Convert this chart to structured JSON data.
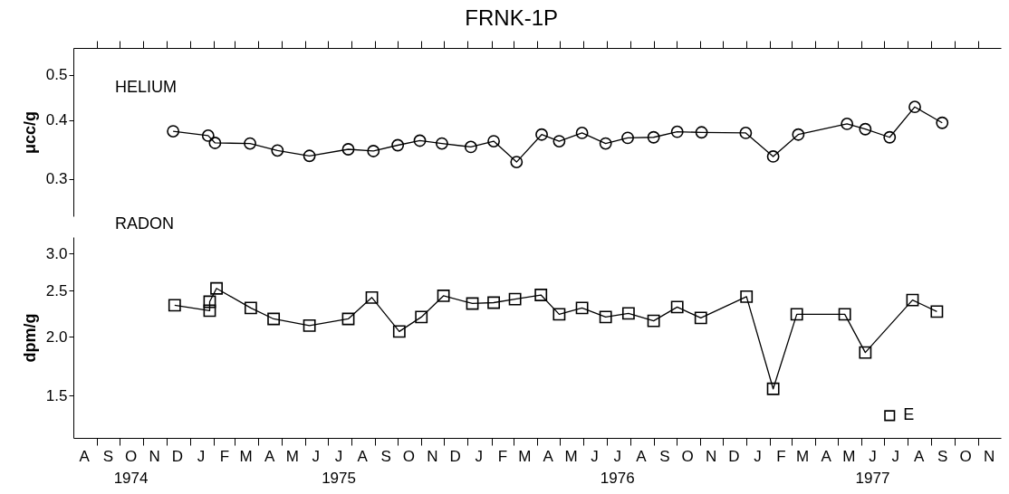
{
  "chart_data": [
    {
      "type": "line",
      "title": "FRNK-1P",
      "ylabel": "μcc/g",
      "log": true,
      "marker": "circle",
      "line_style": "solid",
      "tick_labels": "y",
      "xlim": [
        "1974-08-01",
        "1977-12-01"
      ],
      "ylim": [
        0.25,
        0.57
      ],
      "yticks": [
        0.3,
        0.4,
        0.5
      ],
      "xticks": [
        {
          "value": "1974-09-01",
          "label": null
        },
        {
          "value": "1974-10-01",
          "label": null
        },
        {
          "value": "1974-11-01",
          "label": null
        },
        {
          "value": "1974-12-01",
          "label": null
        },
        {
          "value": "1975-01-01",
          "label": null
        },
        {
          "value": "1975-02-01",
          "label": null
        },
        {
          "value": "1975-03-01",
          "label": null
        },
        {
          "value": "1975-04-01",
          "label": null
        },
        {
          "value": "1975-05-01",
          "label": null
        },
        {
          "value": "1975-06-01",
          "label": null
        },
        {
          "value": "1975-07-01",
          "label": null
        },
        {
          "value": "1975-08-01",
          "label": null
        },
        {
          "value": "1975-09-01",
          "label": null
        },
        {
          "value": "1975-10-01",
          "label": null
        },
        {
          "value": "1975-11-01",
          "label": null
        },
        {
          "value": "1975-12-01",
          "label": null
        },
        {
          "value": "1976-01-01",
          "label": null
        },
        {
          "value": "1976-02-01",
          "label": null
        },
        {
          "value": "1976-03-01",
          "label": null
        },
        {
          "value": "1976-04-01",
          "label": null
        },
        {
          "value": "1976-05-01",
          "label": null
        },
        {
          "value": "1976-06-01",
          "label": null
        },
        {
          "value": "1976-07-01",
          "label": null
        },
        {
          "value": "1976-08-01",
          "label": null
        },
        {
          "value": "1976-09-01",
          "label": null
        },
        {
          "value": "1976-10-01",
          "label": null
        },
        {
          "value": "1976-11-01",
          "label": null
        },
        {
          "value": "1976-12-01",
          "label": null
        },
        {
          "value": "1977-01-01",
          "label": null
        },
        {
          "value": "1977-02-01",
          "label": null
        },
        {
          "value": "1977-03-01",
          "label": null
        },
        {
          "value": "1977-04-01",
          "label": null
        },
        {
          "value": "1977-05-01",
          "label": null
        },
        {
          "value": "1977-06-01",
          "label": null
        },
        {
          "value": "1977-07-01",
          "label": null
        },
        {
          "value": "1977-08-01",
          "label": null
        },
        {
          "value": "1977-09-01",
          "label": null
        },
        {
          "value": "1977-10-01",
          "label": null
        },
        {
          "value": "1977-11-01",
          "label": null
        }
      ],
      "series": [
        {
          "name": "HELIUM",
          "color": "#000000",
          "x": [
            "1974-12-10",
            "1975-01-25",
            "1975-02-03",
            "1975-03-21",
            "1975-04-26",
            "1975-06-07",
            "1975-07-28",
            "1975-08-30",
            "1975-10-01",
            "1975-10-30",
            "1975-11-28",
            "1976-01-05",
            "1976-02-04",
            "1976-03-05",
            "1976-04-07",
            "1976-04-30",
            "1976-05-30",
            "1976-06-30",
            "1976-07-29",
            "1976-09-01",
            "1976-10-02",
            "1976-11-03",
            "1976-12-31",
            "1977-02-05",
            "1977-03-10",
            "1977-05-13",
            "1977-06-06",
            "1977-07-08",
            "1977-08-10",
            "1977-09-15"
          ],
          "values": [
            0.379,
            0.371,
            0.358,
            0.357,
            0.345,
            0.336,
            0.347,
            0.344,
            0.354,
            0.362,
            0.357,
            0.351,
            0.361,
            0.326,
            0.373,
            0.361,
            0.376,
            0.357,
            0.367,
            0.368,
            0.378,
            0.377,
            0.376,
            0.335,
            0.373,
            0.393,
            0.383,
            0.368,
            0.427,
            0.395
          ]
        }
      ]
    },
    {
      "type": "line",
      "ylabel": "dpm/g",
      "log": true,
      "marker": "square",
      "line_style": "solid",
      "xlim": [
        "1974-08-01",
        "1977-12-01"
      ],
      "ylim": [
        1.22,
        3.25
      ],
      "yticks": [
        1.5,
        {
          "value": 2,
          "label": "2.0"
        },
        2.5,
        {
          "value": 3,
          "label": "3.0"
        }
      ],
      "xticks": [
        {
          "value": "1974-08-15",
          "label": "A"
        },
        {
          "value": "1974-09-01",
          "label": null
        },
        {
          "value": "1974-09-15",
          "label": "S"
        },
        {
          "value": "1974-10-01",
          "label": null
        },
        {
          "value": "1974-10-15",
          "label": "O\n1974"
        },
        {
          "value": "1974-11-01",
          "label": null
        },
        {
          "value": "1974-11-15",
          "label": "N"
        },
        {
          "value": "1974-12-01",
          "label": null
        },
        {
          "value": "1974-12-15",
          "label": "D"
        },
        {
          "value": "1975-01-01",
          "label": null
        },
        {
          "value": "1975-01-15",
          "label": "J"
        },
        {
          "value": "1975-02-01",
          "label": null
        },
        {
          "value": "1975-02-15",
          "label": "F"
        },
        {
          "value": "1975-03-01",
          "label": null
        },
        {
          "value": "1975-03-15",
          "label": "M"
        },
        {
          "value": "1975-04-01",
          "label": null
        },
        {
          "value": "1975-04-15",
          "label": "A"
        },
        {
          "value": "1975-05-01",
          "label": null
        },
        {
          "value": "1975-05-15",
          "label": "M"
        },
        {
          "value": "1975-06-01",
          "label": null
        },
        {
          "value": "1975-06-15",
          "label": "J"
        },
        {
          "value": "1975-07-01",
          "label": null
        },
        {
          "value": "1975-07-15",
          "label": "J\n1975"
        },
        {
          "value": "1975-08-01",
          "label": null
        },
        {
          "value": "1975-08-15",
          "label": "A"
        },
        {
          "value": "1975-09-01",
          "label": null
        },
        {
          "value": "1975-09-15",
          "label": "S"
        },
        {
          "value": "1975-10-01",
          "label": null
        },
        {
          "value": "1975-10-15",
          "label": "O"
        },
        {
          "value": "1975-11-01",
          "label": null
        },
        {
          "value": "1975-11-15",
          "label": "N"
        },
        {
          "value": "1975-12-01",
          "label": null
        },
        {
          "value": "1975-12-15",
          "label": "D"
        },
        {
          "value": "1976-01-01",
          "label": null
        },
        {
          "value": "1976-01-15",
          "label": "J"
        },
        {
          "value": "1976-02-01",
          "label": null
        },
        {
          "value": "1976-02-15",
          "label": "F"
        },
        {
          "value": "1976-03-01",
          "label": null
        },
        {
          "value": "1976-03-15",
          "label": "M"
        },
        {
          "value": "1976-04-01",
          "label": null
        },
        {
          "value": "1976-04-15",
          "label": "A"
        },
        {
          "value": "1976-05-01",
          "label": null
        },
        {
          "value": "1976-05-15",
          "label": "M"
        },
        {
          "value": "1976-06-01",
          "label": null
        },
        {
          "value": "1976-06-15",
          "label": "J"
        },
        {
          "value": "1976-07-01",
          "label": null
        },
        {
          "value": "1976-07-15",
          "label": "J\n1976"
        },
        {
          "value": "1976-08-01",
          "label": null
        },
        {
          "value": "1976-08-15",
          "label": "A"
        },
        {
          "value": "1976-09-01",
          "label": null
        },
        {
          "value": "1976-09-15",
          "label": "S"
        },
        {
          "value": "1976-10-01",
          "label": null
        },
        {
          "value": "1976-10-15",
          "label": "O"
        },
        {
          "value": "1976-11-01",
          "label": null
        },
        {
          "value": "1976-11-15",
          "label": "N"
        },
        {
          "value": "1976-12-01",
          "label": null
        },
        {
          "value": "1976-12-15",
          "label": "D"
        },
        {
          "value": "1977-01-01",
          "label": null
        },
        {
          "value": "1977-01-15",
          "label": "J"
        },
        {
          "value": "1977-02-01",
          "label": null
        },
        {
          "value": "1977-02-15",
          "label": "F"
        },
        {
          "value": "1977-03-01",
          "label": null
        },
        {
          "value": "1977-03-15",
          "label": "M"
        },
        {
          "value": "1977-04-01",
          "label": null
        },
        {
          "value": "1977-04-15",
          "label": "A"
        },
        {
          "value": "1977-05-01",
          "label": null
        },
        {
          "value": "1977-05-15",
          "label": "M"
        },
        {
          "value": "1977-06-01",
          "label": null
        },
        {
          "value": "1977-06-15",
          "label": "J\n1977"
        },
        {
          "value": "1977-07-01",
          "label": null
        },
        {
          "value": "1977-07-15",
          "label": "J"
        },
        {
          "value": "1977-08-01",
          "label": null
        },
        {
          "value": "1977-08-15",
          "label": "A"
        },
        {
          "value": "1977-09-01",
          "label": null
        },
        {
          "value": "1977-09-15",
          "label": "S"
        },
        {
          "value": "1977-10-01",
          "label": null
        },
        {
          "value": "1977-10-15",
          "label": "O"
        },
        {
          "value": "1977-11-01",
          "label": null
        },
        {
          "value": "1977-11-15",
          "label": "N"
        }
      ],
      "annotations": [
        {
          "text": "E",
          "x": "1977-07-08",
          "y": 1.36
        }
      ],
      "series": [
        {
          "name": "RADON",
          "color": "#000000",
          "x": [
            "1974-12-12",
            "1975-01-27",
            "1975-01-27",
            "1975-02-05",
            "1975-03-22",
            "1975-04-21",
            "1975-06-07",
            "1975-07-28",
            "1975-08-28",
            "1975-10-03",
            "1975-11-01",
            "1975-11-30",
            "1976-01-07",
            "1976-02-04",
            "1976-03-03",
            "1976-04-06",
            "1976-04-30",
            "1976-05-30",
            "1976-06-30",
            "1976-07-30",
            "1976-09-01",
            "1976-10-02",
            "1976-11-02",
            "1977-01-01",
            "1977-02-05",
            "1977-03-08",
            "1977-05-10",
            "1977-06-06",
            "1977-08-07",
            "1977-09-08"
          ],
          "values": [
            2.33,
            2.27,
            2.37,
            2.53,
            2.3,
            2.18,
            2.11,
            2.18,
            2.42,
            2.05,
            2.2,
            2.44,
            2.35,
            2.36,
            2.4,
            2.45,
            2.23,
            2.3,
            2.2,
            2.24,
            2.16,
            2.31,
            2.19,
            2.43,
            1.55,
            2.23,
            2.23,
            1.85,
            2.39,
            2.26
          ]
        },
        {
          "type": "scatter",
          "color": "#000000",
          "x": [
            "1977-07-08"
          ],
          "values": [
            1.36
          ]
        }
      ]
    }
  ]
}
